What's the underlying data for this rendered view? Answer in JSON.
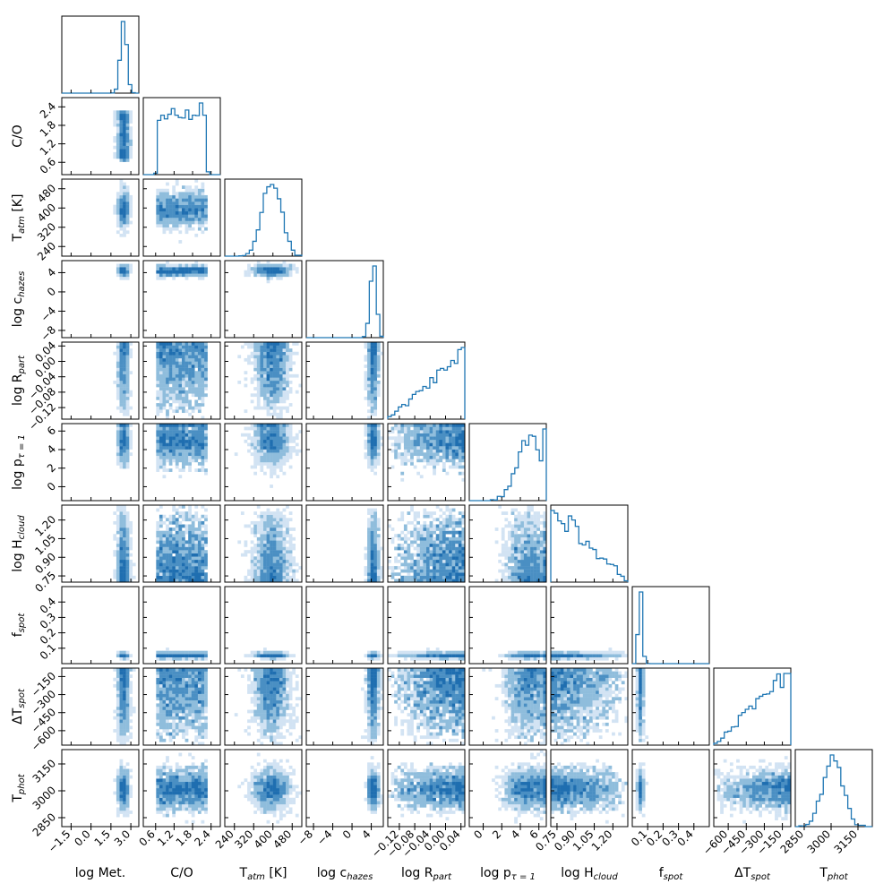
{
  "chart_data": {
    "type": "corner",
    "title": "",
    "colors": {
      "line": "#1f77b4",
      "fill_levels": [
        "#d2e3f3",
        "#8fbddc",
        "#4a8fc3",
        "#1f6eb0"
      ]
    },
    "parameters": [
      {
        "name": "logmet",
        "label": "log Met.",
        "sub": "",
        "ylabel": "",
        "range": [
          -2.2,
          3.6
        ],
        "ticks": [
          {
            "v": -1.5,
            "t": "−1.5"
          },
          {
            "v": 0.0,
            "t": "0.0"
          },
          {
            "v": 1.5,
            "t": "1.5"
          },
          {
            "v": 3.0,
            "t": "3.0"
          }
        ],
        "mean": 2.45,
        "sd": 0.22,
        "trend": "peak"
      },
      {
        "name": "co",
        "label": "C/O",
        "sub": "",
        "ylabel": "C/O",
        "range": [
          0.2,
          2.7
        ],
        "ticks": [
          {
            "v": 0.6,
            "t": "0.6"
          },
          {
            "v": 1.2,
            "t": "1.2"
          },
          {
            "v": 1.8,
            "t": "1.8"
          },
          {
            "v": 2.4,
            "t": "2.4"
          }
        ],
        "mean": 1.45,
        "sd": 0.8,
        "trend": "flat"
      },
      {
        "name": "tatm",
        "label": "T",
        "sub": "atm",
        "suffix": " [K]",
        "ylabel": "T",
        "range": [
          200,
          520
        ],
        "ticks": [
          {
            "v": 240,
            "t": "240"
          },
          {
            "v": 320,
            "t": "320"
          },
          {
            "v": 400,
            "t": "400"
          },
          {
            "v": 480,
            "t": "480"
          }
        ],
        "mean": 395,
        "sd": 38,
        "trend": "gauss"
      },
      {
        "name": "chazes",
        "label": "log c",
        "sub": "hazes",
        "ylabel": "log c",
        "range": [
          -9.5,
          6.5
        ],
        "ticks": [
          {
            "v": -8,
            "t": "−8"
          },
          {
            "v": -4,
            "t": "−4"
          },
          {
            "v": 0,
            "t": "0"
          },
          {
            "v": 4,
            "t": "4"
          }
        ],
        "mean": 4.4,
        "sd": 0.6,
        "trend": "peak"
      },
      {
        "name": "rpart",
        "label": "log R",
        "sub": "part",
        "ylabel": "log R",
        "range": [
          -0.15,
          0.05
        ],
        "ticks": [
          {
            "v": -0.12,
            "t": "−0.12"
          },
          {
            "v": -0.08,
            "t": "−0.08"
          },
          {
            "v": -0.04,
            "t": "−0.04"
          },
          {
            "v": 0.0,
            "t": "0.00"
          },
          {
            "v": 0.04,
            "t": "0.04"
          }
        ],
        "mean": -0.02,
        "sd": 0.05,
        "trend": "rising"
      },
      {
        "name": "ptau",
        "label": "log p",
        "sub": "τ = 1",
        "ylabel": "log p",
        "range": [
          -1.5,
          6.8
        ],
        "ticks": [
          {
            "v": 0,
            "t": "0"
          },
          {
            "v": 2,
            "t": "2"
          },
          {
            "v": 4,
            "t": "4"
          },
          {
            "v": 6,
            "t": "6"
          }
        ],
        "mean": 5.0,
        "sd": 1.3,
        "trend": "rising-s"
      },
      {
        "name": "hcloud",
        "label": "log H",
        "sub": "cloud",
        "ylabel": "log H",
        "range": [
          0.7,
          1.32
        ],
        "ticks": [
          {
            "v": 0.75,
            "t": "0.75"
          },
          {
            "v": 0.9,
            "t": "0.90"
          },
          {
            "v": 1.05,
            "t": "1.05"
          },
          {
            "v": 1.2,
            "t": "1.20"
          }
        ],
        "mean": 0.82,
        "sd": 0.12,
        "trend": "falling"
      },
      {
        "name": "fspot",
        "label": "f",
        "sub": "spot",
        "ylabel": "f",
        "range": [
          0.0,
          0.5
        ],
        "ticks": [
          {
            "v": 0.1,
            "t": "0.1"
          },
          {
            "v": 0.2,
            "t": "0.2"
          },
          {
            "v": 0.3,
            "t": "0.3"
          },
          {
            "v": 0.4,
            "t": "0.4"
          }
        ],
        "mean": 0.04,
        "sd": 0.02,
        "trend": "peak-left"
      },
      {
        "name": "dtspot",
        "label": "ΔT",
        "sub": "spot",
        "ylabel": "ΔT",
        "range": [
          -720,
          -80
        ],
        "ticks": [
          {
            "v": -600,
            "t": "−600"
          },
          {
            "v": -450,
            "t": "−450"
          },
          {
            "v": -300,
            "t": "−300"
          },
          {
            "v": -150,
            "t": "−150"
          }
        ],
        "mean": -200,
        "sd": 150,
        "trend": "rising"
      },
      {
        "name": "tphot",
        "label": "T",
        "sub": "phot",
        "ylabel": "T",
        "range": [
          2800,
          3230
        ],
        "ticks": [
          {
            "v": 2850,
            "t": "2850"
          },
          {
            "v": 3000,
            "t": "3000"
          },
          {
            "v": 3150,
            "t": "3150"
          }
        ],
        "mean": 3010,
        "sd": 55,
        "trend": "gauss"
      }
    ]
  }
}
